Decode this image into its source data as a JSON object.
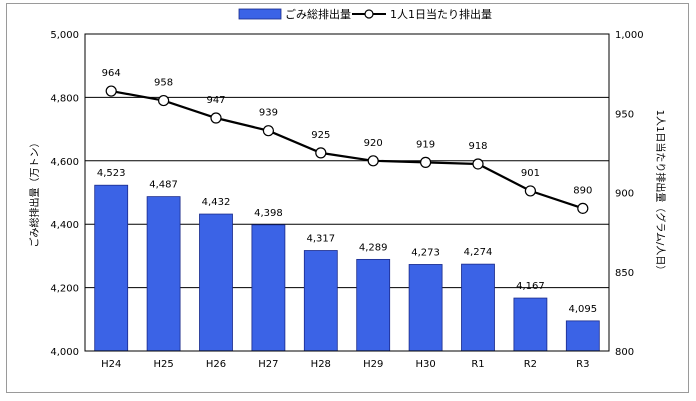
{
  "chart_data": {
    "type": "bar+line",
    "categories": [
      "H24",
      "H25",
      "H26",
      "H27",
      "H28",
      "H29",
      "H30",
      "R1",
      "R2",
      "R3"
    ],
    "series": [
      {
        "name": "ごみ総排出量",
        "type": "bar",
        "axis": "left",
        "values": [
          4523,
          4487,
          4432,
          4398,
          4317,
          4289,
          4273,
          4274,
          4167,
          4095
        ],
        "labels": [
          "4,523",
          "4,487",
          "4,432",
          "4,398",
          "4,317",
          "4,289",
          "4,273",
          "4,274",
          "4,167",
          "4,095"
        ],
        "color": "#3b63e6"
      },
      {
        "name": "1人1日当たり排出量",
        "type": "line",
        "axis": "right",
        "values": [
          964,
          958,
          947,
          939,
          925,
          920,
          919,
          918,
          901,
          890
        ],
        "labels": [
          "964",
          "958",
          "947",
          "939",
          "925",
          "920",
          "919",
          "918",
          "901",
          "890"
        ],
        "color": "#000000"
      }
    ],
    "ylabel": "ごみ総排出量（万トン）",
    "y2label": "1人1日当たり排出量（グラム/人日）",
    "ylim": [
      4000,
      5000
    ],
    "y2lim": [
      800,
      1000
    ],
    "yticks": [
      "4,000",
      "4,200",
      "4,400",
      "4,600",
      "4,800",
      "5,000"
    ],
    "y2ticks": [
      "800",
      "850",
      "900",
      "950",
      "1,000"
    ],
    "grid": true,
    "legend": "top"
  }
}
